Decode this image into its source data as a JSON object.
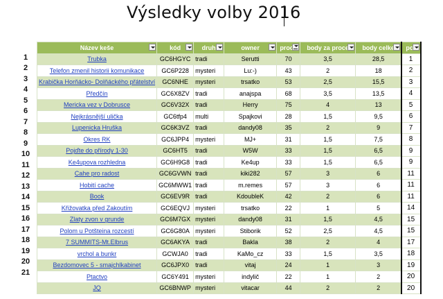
{
  "title": "Výsledky volby 2016",
  "headers": [
    "Název keše",
    "kód",
    "druh",
    "owner",
    "proce",
    "body za proce",
    "body celke",
    "poř"
  ],
  "rows": [
    {
      "num": "1",
      "name": "Trubka",
      "kod": "GC6HGYC",
      "druh": "tradi",
      "owner": "Serutti",
      "proc": "70",
      "body_proc": "3,5",
      "body_celk": "28,5",
      "por": "1"
    },
    {
      "num": "2",
      "name": "Telefon zmenil historii komunikace",
      "kod": "GC6P228",
      "druh": "mysteri",
      "owner": "Lu:-)",
      "proc": "43",
      "body_proc": "2",
      "body_celk": "18",
      "por": "2"
    },
    {
      "num": "3",
      "name": "Krabička Horňácko- Dolňáckého přátelství",
      "kod": "GC6NHE",
      "druh": "mysteri",
      "owner": "trsatko",
      "proc": "53",
      "body_proc": "2,5",
      "body_celk": "15,5",
      "por": "3"
    },
    {
      "num": "4",
      "name": "Předčín",
      "kod": "GC6X8ZV",
      "druh": "tradi",
      "owner": "anajspa",
      "proc": "68",
      "body_proc": "3,5",
      "body_celk": "13,5",
      "por": "4"
    },
    {
      "num": "5",
      "name": "Mericka vez v Dobrusce",
      "kod": "GC6V32X",
      "druh": "tradi",
      "owner": "Herry",
      "proc": "75",
      "body_proc": "4",
      "body_celk": "13",
      "por": "5"
    },
    {
      "num": "6",
      "name": "Nejkrásnější ulička",
      "kod": "GC6tfp4",
      "druh": "multi",
      "owner": "Spajkovi",
      "proc": "28",
      "body_proc": "1,5",
      "body_celk": "9,5",
      "por": "6"
    },
    {
      "num": "7",
      "name": "Lupenicka Hruška",
      "kod": "GC6K3VZ",
      "druh": "tradi",
      "owner": "dandy08",
      "proc": "35",
      "body_proc": "2",
      "body_celk": "9",
      "por": "7"
    },
    {
      "num": "8",
      "name": "Okres RK",
      "kod": "GC6JPP4",
      "druh": "mysteri",
      "owner": "MJ+",
      "proc": "31",
      "body_proc": "1,5",
      "body_celk": "7,5",
      "por": "8"
    },
    {
      "num": "9",
      "name": "Pojďte do přírody 1-30",
      "kod": "GC6HT5",
      "druh": "tradi",
      "owner": "W5W",
      "proc": "33",
      "body_proc": "1,5",
      "body_celk": "6,5",
      "por": "9"
    },
    {
      "num": "10",
      "name": "Ke4upova rozhledna",
      "kod": "GC6H9G8",
      "druh": "tradi",
      "owner": "Ke4up",
      "proc": "33",
      "body_proc": "1,5",
      "body_celk": "6,5",
      "por": "9"
    },
    {
      "num": "11",
      "name": "Cahe pro radost",
      "kod": "GC6GVWN",
      "druh": "tradi",
      "owner": "kiki282",
      "proc": "57",
      "body_proc": "3",
      "body_celk": "6",
      "por": "11"
    },
    {
      "num": "12",
      "name": "Hobití cache",
      "kod": "GC6MWW1",
      "druh": "tradi",
      "owner": "m.remes",
      "proc": "57",
      "body_proc": "3",
      "body_celk": "6",
      "por": "11"
    },
    {
      "num": "13",
      "name": "Book",
      "kod": "GC6EV9R",
      "druh": "tradi",
      "owner": "KdoubleK",
      "proc": "42",
      "body_proc": "2",
      "body_celk": "6",
      "por": "11"
    },
    {
      "num": "14",
      "name": "Křižovatka před Zakoutím",
      "kod": "GC6EQVJ",
      "druh": "mysteri",
      "owner": "trsatko",
      "proc": "22",
      "body_proc": "1",
      "body_celk": "5",
      "por": "14"
    },
    {
      "num": "15",
      "name": "Zlaty zvon v grunde",
      "kod": "GC6M7GX",
      "druh": "mysteri",
      "owner": "dandy08",
      "proc": "31",
      "body_proc": "1,5",
      "body_celk": "4,5",
      "por": "15"
    },
    {
      "num": "16",
      "name": "Polom u Potšteina rozcestí",
      "kod": "GC6G80A",
      "druh": "mysteri",
      "owner": "Stiborik",
      "proc": "52",
      "body_proc": "2,5",
      "body_celk": "4,5",
      "por": "15"
    },
    {
      "num": "17",
      "name": "7 SUMMITS-Mt.Elbrus",
      "kod": "GC6AKYA",
      "druh": "tradi",
      "owner": "Bakla",
      "proc": "38",
      "body_proc": "2",
      "body_celk": "4",
      "por": "17"
    },
    {
      "num": "18",
      "name": "vrchol a bunkr",
      "kod": "GCWJA0",
      "druh": "tradi",
      "owner": "KaMo_cz",
      "proc": "33",
      "body_proc": "1,5",
      "body_celk": "3,5",
      "por": "18"
    },
    {
      "num": "19",
      "name": "Bezdomovec 5 - smajchlkabinet",
      "kod": "GC6JPX0",
      "druh": "tradi",
      "owner": "vitaj",
      "proc": "24",
      "body_proc": "1",
      "body_celk": "3",
      "por": "19"
    },
    {
      "num": "20",
      "name": "Ptactvo",
      "kod": "GC6Y491",
      "druh": "mysteri",
      "owner": "indylič",
      "proc": "22",
      "body_proc": "1",
      "body_celk": "2",
      "por": "20"
    },
    {
      "num": "21",
      "name": "JQ",
      "kod": "GC6BNWP",
      "druh": "mysteri",
      "owner": "vitacar",
      "proc": "44",
      "body_proc": "2",
      "body_celk": "2",
      "por": "20"
    }
  ],
  "colors": {
    "header_bg": "#9bbb59",
    "band_bg": "#d8e4bc",
    "link": "#1f3fc0"
  }
}
